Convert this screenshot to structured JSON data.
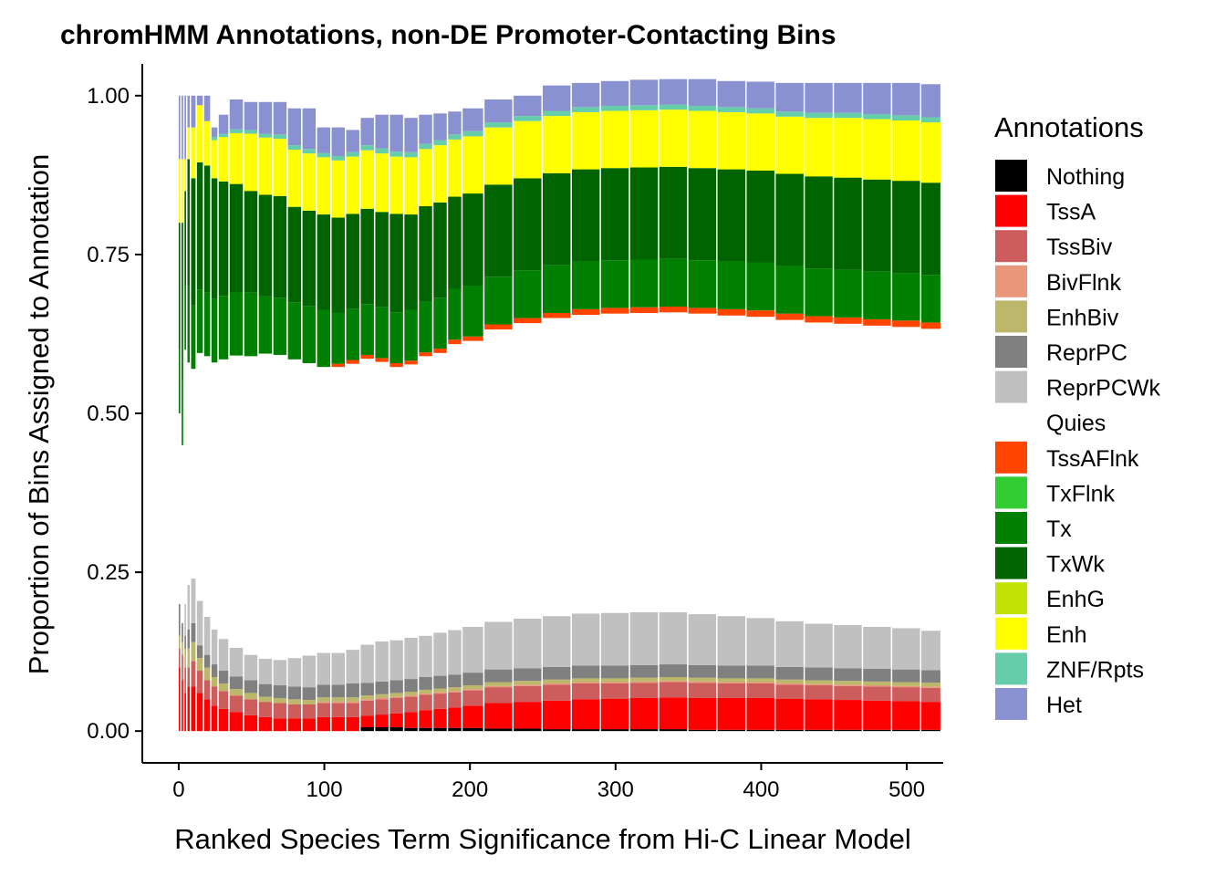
{
  "chart_data": {
    "type": "bar",
    "stacked": true,
    "title": "chromHMM Annotations, non-DE Promoter-Contacting Bins",
    "xlabel": "Ranked Species Term Significance from Hi-C Linear Model",
    "ylabel": "Proportion of Bins Assigned to Annotation",
    "xlim": [
      -25,
      525
    ],
    "ylim": [
      -0.05,
      1.05
    ],
    "x_ticks": [
      0,
      100,
      200,
      300,
      400,
      500
    ],
    "y_ticks": [
      0.0,
      0.25,
      0.5,
      0.75,
      1.0
    ],
    "x_tick_labels": [
      "0",
      "100",
      "200",
      "300",
      "400",
      "500"
    ],
    "y_tick_labels": [
      "0.00",
      "0.25",
      "0.50",
      "0.75",
      "1.00"
    ],
    "grid": false,
    "legend_position": "right",
    "legend_title": "Annotations",
    "series_order": [
      "Nothing",
      "TssA",
      "TssBiv",
      "BivFlnk",
      "EnhBiv",
      "ReprPC",
      "ReprPCWk",
      "Quies",
      "TssAFlnk",
      "TxFlnk",
      "Tx",
      "TxWk",
      "EnhG",
      "Enh",
      "ZNF/Rpts",
      "Het"
    ],
    "colors": {
      "Nothing": "#000000",
      "TssA": "#ff0000",
      "TssBiv": "#cd5c5c",
      "BivFlnk": "#e9967a",
      "EnhBiv": "#bdb76b",
      "ReprPC": "#808080",
      "ReprPCWk": "#c0c0c0",
      "Quies": "#ffffff",
      "TssAFlnk": "#ff4500",
      "TxFlnk": "#32cd32",
      "Tx": "#008000",
      "TxWk": "#006400",
      "EnhG": "#c2e105",
      "Enh": "#ffff00",
      "ZNF/Rpts": "#66cdaa",
      "Het": "#8a91d0"
    },
    "x": [
      1,
      3,
      5,
      7,
      10,
      15,
      20,
      25,
      30,
      40,
      50,
      60,
      70,
      80,
      90,
      100,
      110,
      120,
      130,
      140,
      150,
      160,
      170,
      180,
      190,
      200,
      220,
      240,
      260,
      280,
      300,
      320,
      340,
      360,
      380,
      400,
      420,
      440,
      460,
      480,
      500,
      520
    ],
    "series": [
      {
        "name": "Nothing",
        "values": [
          0,
          0,
          0,
          0,
          0,
          0,
          0,
          0,
          0,
          0,
          0,
          0,
          0,
          0,
          0,
          0,
          0,
          0,
          0.006,
          0.006,
          0.006,
          0.005,
          0.005,
          0.005,
          0.005,
          0.005,
          0.004,
          0.004,
          0.003,
          0.003,
          0.003,
          0.003,
          0.003,
          0.002,
          0.002,
          0.002,
          0.002,
          0.002,
          0.002,
          0.002,
          0.002,
          0.002
        ]
      },
      {
        "name": "TssA",
        "values": [
          0.1,
          0.08,
          0.06,
          0.07,
          0.07,
          0.06,
          0.05,
          0.04,
          0.035,
          0.03,
          0.025,
          0.022,
          0.02,
          0.02,
          0.02,
          0.022,
          0.022,
          0.022,
          0.018,
          0.02,
          0.022,
          0.025,
          0.028,
          0.03,
          0.032,
          0.035,
          0.04,
          0.042,
          0.045,
          0.047,
          0.048,
          0.049,
          0.05,
          0.05,
          0.05,
          0.05,
          0.049,
          0.048,
          0.047,
          0.046,
          0.045,
          0.044
        ]
      },
      {
        "name": "TssBiv",
        "values": [
          0.03,
          0.04,
          0.04,
          0.03,
          0.04,
          0.035,
          0.03,
          0.03,
          0.028,
          0.026,
          0.025,
          0.024,
          0.024,
          0.022,
          0.022,
          0.022,
          0.022,
          0.022,
          0.024,
          0.024,
          0.024,
          0.024,
          0.024,
          0.024,
          0.024,
          0.024,
          0.025,
          0.025,
          0.025,
          0.025,
          0.024,
          0.024,
          0.024,
          0.024,
          0.023,
          0.023,
          0.022,
          0.022,
          0.022,
          0.022,
          0.022,
          0.022
        ]
      },
      {
        "name": "BivFlnk",
        "values": [
          0,
          0,
          0,
          0,
          0,
          0,
          0,
          0,
          0,
          0,
          0,
          0,
          0,
          0,
          0,
          0.002,
          0.002,
          0.002,
          0.002,
          0.002,
          0.002,
          0.002,
          0.002,
          0.002,
          0.002,
          0.002,
          0.002,
          0.002,
          0.002,
          0.002,
          0.002,
          0.002,
          0.002,
          0.002,
          0.002,
          0.002,
          0.002,
          0.002,
          0.002,
          0.002,
          0.002,
          0.002
        ]
      },
      {
        "name": "EnhBiv",
        "values": [
          0.02,
          0.02,
          0.03,
          0.03,
          0.03,
          0.02,
          0.02,
          0.015,
          0.012,
          0.01,
          0.01,
          0.008,
          0.008,
          0.008,
          0.007,
          0.007,
          0.007,
          0.007,
          0.006,
          0.006,
          0.006,
          0.006,
          0.006,
          0.006,
          0.006,
          0.006,
          0.006,
          0.006,
          0.006,
          0.006,
          0.006,
          0.006,
          0.006,
          0.006,
          0.006,
          0.006,
          0.006,
          0.006,
          0.006,
          0.006,
          0.006,
          0.006
        ]
      },
      {
        "name": "ReprPC",
        "values": [
          0.05,
          0.03,
          0.02,
          0.03,
          0.03,
          0.02,
          0.02,
          0.02,
          0.02,
          0.02,
          0.02,
          0.02,
          0.02,
          0.02,
          0.02,
          0.02,
          0.02,
          0.022,
          0.02,
          0.02,
          0.02,
          0.02,
          0.02,
          0.02,
          0.02,
          0.02,
          0.02,
          0.02,
          0.02,
          0.02,
          0.02,
          0.02,
          0.02,
          0.02,
          0.02,
          0.02,
          0.02,
          0.02,
          0.02,
          0.02,
          0.02,
          0.02
        ]
      },
      {
        "name": "ReprPCWk",
        "values": [
          0,
          0,
          0.05,
          0.07,
          0.07,
          0.07,
          0.06,
          0.055,
          0.05,
          0.045,
          0.04,
          0.04,
          0.04,
          0.045,
          0.05,
          0.05,
          0.05,
          0.053,
          0.06,
          0.063,
          0.063,
          0.065,
          0.065,
          0.068,
          0.07,
          0.072,
          0.075,
          0.078,
          0.08,
          0.082,
          0.083,
          0.083,
          0.082,
          0.08,
          0.078,
          0.075,
          0.072,
          0.069,
          0.068,
          0.066,
          0.065,
          0.062
        ]
      },
      {
        "name": "Quies",
        "values": [
          0.3,
          0.28,
          0.4,
          0.35,
          0.33,
          0.39,
          0.41,
          0.42,
          0.44,
          0.46,
          0.47,
          0.48,
          0.48,
          0.47,
          0.46,
          0.45,
          0.45,
          0.45,
          0.45,
          0.44,
          0.43,
          0.43,
          0.44,
          0.44,
          0.45,
          0.45,
          0.46,
          0.465,
          0.469,
          0.47,
          0.471,
          0.471,
          0.472,
          0.473,
          0.473,
          0.474,
          0.474,
          0.474,
          0.474,
          0.474,
          0.474,
          0.475
        ]
      },
      {
        "name": "TssAFlnk",
        "values": [
          0,
          0,
          0,
          0,
          0,
          0,
          0,
          0,
          0,
          0,
          0,
          0,
          0,
          0,
          0,
          0,
          0.005,
          0.006,
          0.006,
          0.006,
          0.006,
          0.006,
          0.006,
          0.007,
          0.007,
          0.007,
          0.008,
          0.008,
          0.008,
          0.009,
          0.009,
          0.009,
          0.009,
          0.009,
          0.01,
          0.01,
          0.01,
          0.01,
          0.01,
          0.01,
          0.01,
          0.01
        ]
      },
      {
        "name": "TxFlnk",
        "values": [
          0,
          0,
          0,
          0,
          0,
          0,
          0,
          0,
          0,
          0,
          0,
          0,
          0,
          0,
          0,
          0,
          0,
          0,
          0,
          0,
          0,
          0,
          0,
          0,
          0,
          0,
          0,
          0,
          0,
          0,
          0,
          0,
          0,
          0,
          0,
          0,
          0,
          0,
          0,
          0,
          0,
          0
        ]
      },
      {
        "name": "Tx",
        "values": [
          0.1,
          0.1,
          0.1,
          0.12,
          0.1,
          0.1,
          0.1,
          0.1,
          0.1,
          0.1,
          0.1,
          0.09,
          0.09,
          0.09,
          0.09,
          0.09,
          0.08,
          0.08,
          0.08,
          0.08,
          0.08,
          0.08,
          0.08,
          0.08,
          0.08,
          0.08,
          0.075,
          0.075,
          0.075,
          0.075,
          0.075,
          0.075,
          0.075,
          0.075,
          0.075,
          0.075,
          0.075,
          0.075,
          0.075,
          0.075,
          0.075,
          0.075
        ]
      },
      {
        "name": "TxWk",
        "values": [
          0.2,
          0.25,
          0.15,
          0.2,
          0.2,
          0.2,
          0.2,
          0.19,
          0.18,
          0.17,
          0.16,
          0.16,
          0.16,
          0.15,
          0.15,
          0.15,
          0.15,
          0.15,
          0.15,
          0.15,
          0.155,
          0.15,
          0.15,
          0.15,
          0.145,
          0.145,
          0.145,
          0.145,
          0.145,
          0.145,
          0.145,
          0.145,
          0.145,
          0.145,
          0.145,
          0.145,
          0.145,
          0.145,
          0.145,
          0.145,
          0.145,
          0.145
        ]
      },
      {
        "name": "EnhG",
        "values": [
          0,
          0,
          0,
          0,
          0,
          0,
          0,
          0,
          0,
          0,
          0,
          0,
          0,
          0,
          0,
          0,
          0,
          0,
          0,
          0,
          0,
          0,
          0,
          0,
          0,
          0,
          0,
          0,
          0,
          0,
          0,
          0,
          0,
          0,
          0,
          0,
          0,
          0,
          0,
          0,
          0,
          0
        ]
      },
      {
        "name": "Enh",
        "values": [
          0.1,
          0.1,
          0.05,
          0.05,
          0.08,
          0.09,
          0.07,
          0.06,
          0.07,
          0.08,
          0.09,
          0.09,
          0.09,
          0.09,
          0.09,
          0.09,
          0.09,
          0.09,
          0.092,
          0.092,
          0.09,
          0.09,
          0.09,
          0.09,
          0.09,
          0.09,
          0.09,
          0.09,
          0.09,
          0.09,
          0.09,
          0.09,
          0.09,
          0.09,
          0.09,
          0.09,
          0.09,
          0.092,
          0.094,
          0.095,
          0.095,
          0.095
        ]
      },
      {
        "name": "ZNF/Rpts",
        "values": [
          0,
          0,
          0,
          0,
          0,
          0,
          0,
          0.005,
          0.005,
          0.006,
          0.006,
          0.006,
          0.007,
          0.007,
          0.007,
          0.007,
          0.007,
          0.007,
          0.008,
          0.008,
          0.008,
          0.008,
          0.008,
          0.008,
          0.008,
          0.008,
          0.008,
          0.008,
          0.008,
          0.008,
          0.008,
          0.008,
          0.008,
          0.008,
          0.008,
          0.008,
          0.008,
          0.008,
          0.008,
          0.008,
          0.008,
          0.008
        ]
      },
      {
        "name": "Het",
        "values": [
          0.1,
          0.1,
          0.1,
          0.05,
          0.05,
          0.015,
          0.04,
          0.015,
          0.03,
          0.047,
          0.044,
          0.05,
          0.051,
          0.058,
          0.064,
          0.04,
          0.045,
          0.035,
          0.043,
          0.053,
          0.058,
          0.054,
          0.046,
          0.042,
          0.036,
          0.036,
          0.036,
          0.032,
          0.04,
          0.038,
          0.039,
          0.04,
          0.04,
          0.042,
          0.041,
          0.042,
          0.045,
          0.047,
          0.047,
          0.049,
          0.051,
          0.052
        ]
      }
    ]
  }
}
